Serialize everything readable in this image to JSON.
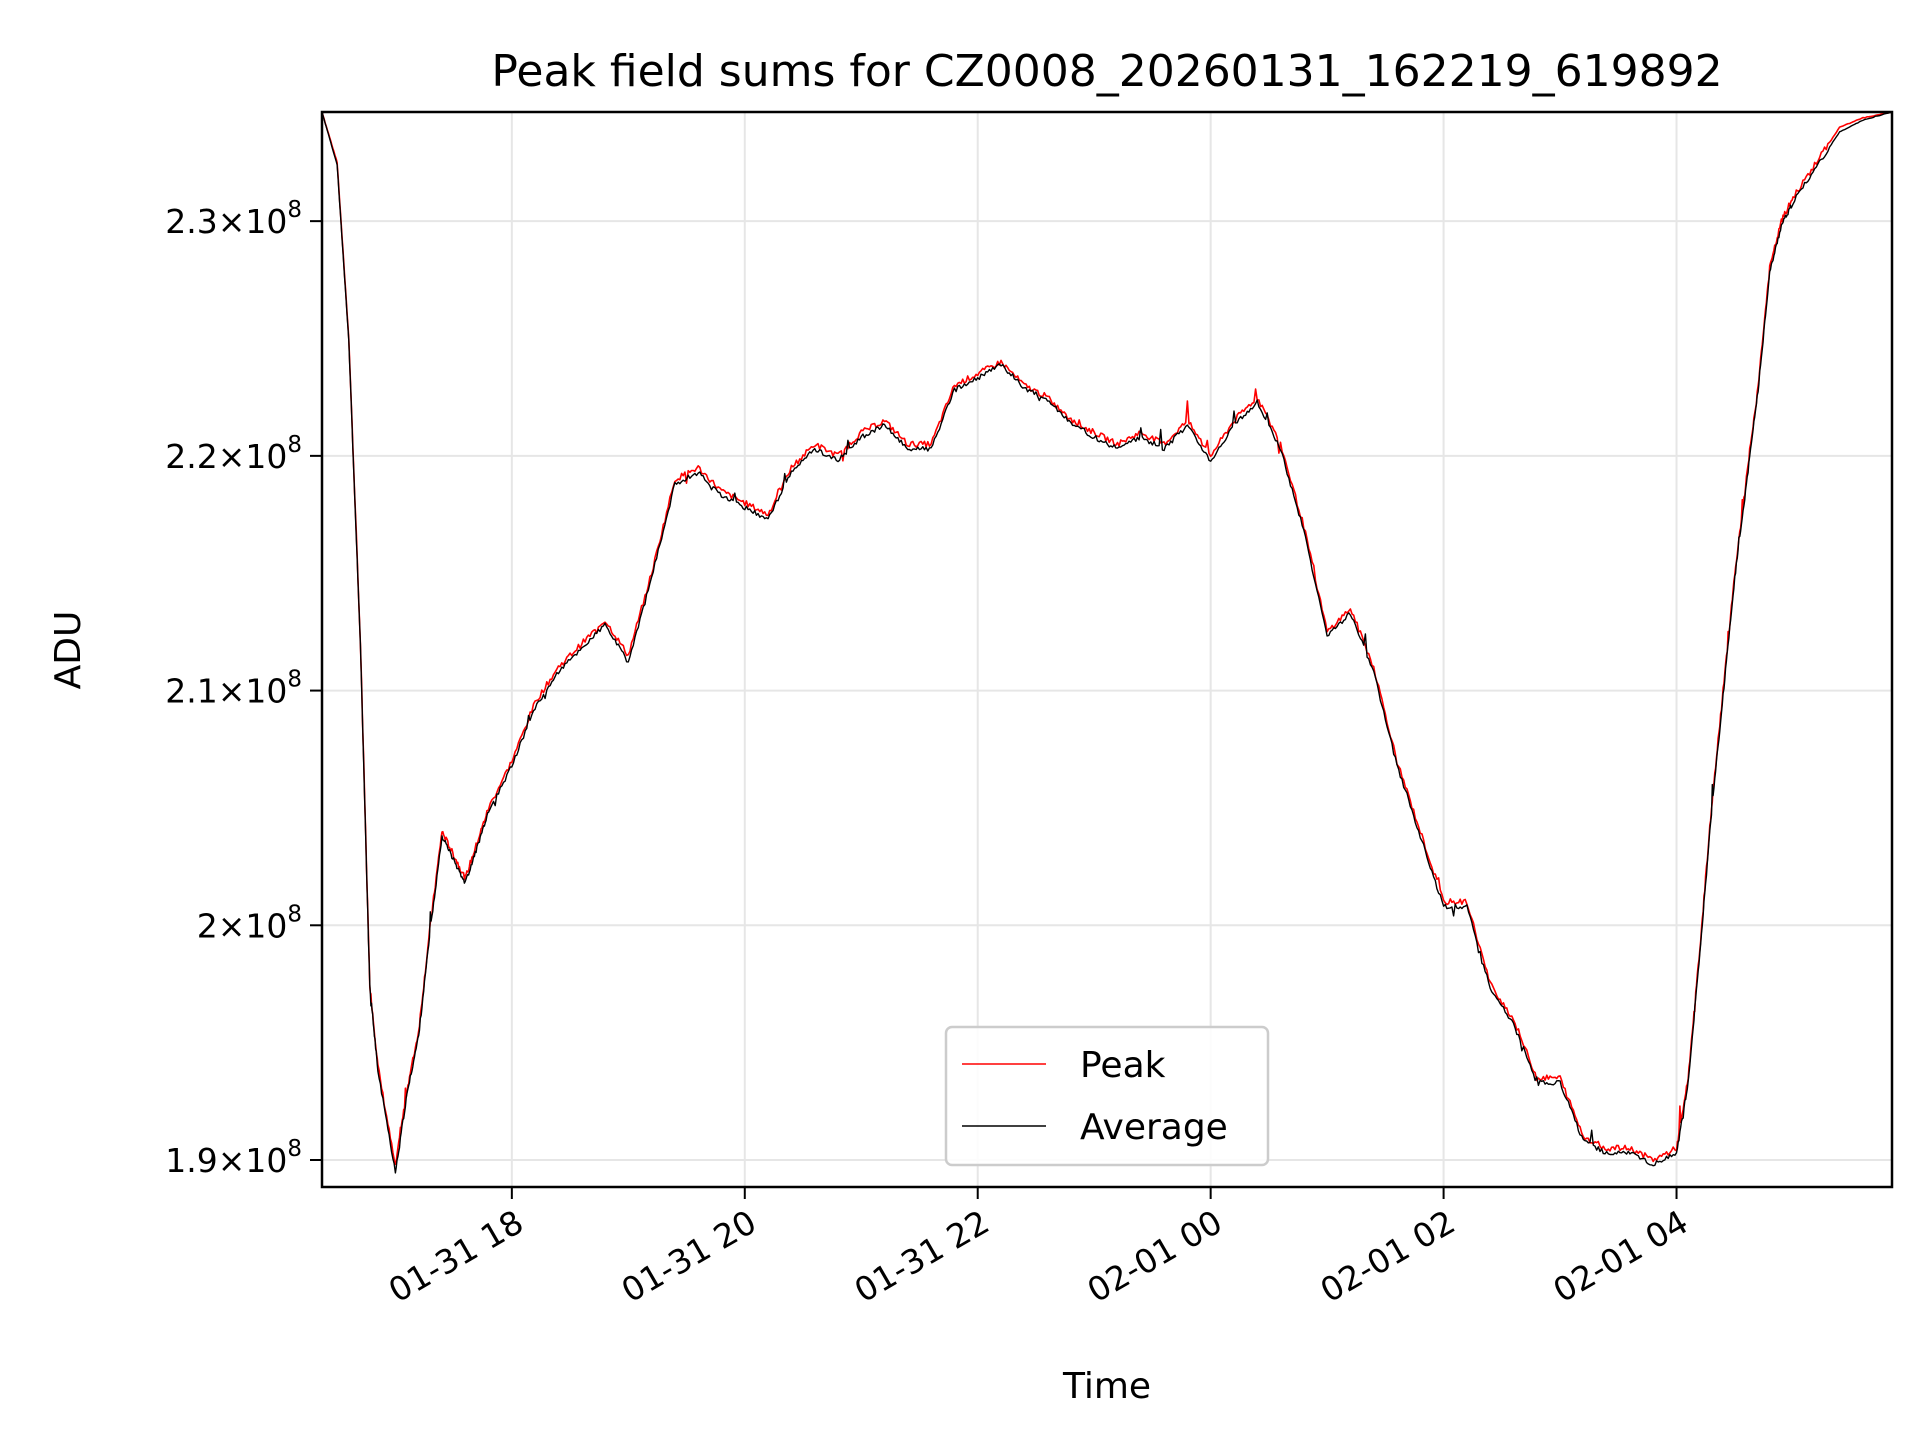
{
  "chart_data": {
    "type": "line",
    "title": "Peak field sums for CZ0008_20260131_162219_619892",
    "xlabel": "Time",
    "ylabel": "ADU",
    "xlim": [
      16.37,
      29.85
    ],
    "ylim": [
      188850000.0,
      234650000.0
    ],
    "grid": true,
    "legend_position": "lower-center",
    "x_ticks": [
      {
        "value": 18,
        "label": "01-31 18"
      },
      {
        "value": 20,
        "label": "01-31 20"
      },
      {
        "value": 22,
        "label": "01-31 22"
      },
      {
        "value": 24,
        "label": "02-01 00"
      },
      {
        "value": 26,
        "label": "02-01 02"
      },
      {
        "value": 28,
        "label": "02-01 04"
      }
    ],
    "y_ticks": [
      {
        "value": 190000000.0,
        "mantissa": "1.9",
        "exponent": "8"
      },
      {
        "value": 200000000.0,
        "mantissa": "2",
        "exponent": "8"
      },
      {
        "value": 210000000.0,
        "mantissa": "2.1",
        "exponent": "8"
      },
      {
        "value": 220000000.0,
        "mantissa": "2.2",
        "exponent": "8"
      },
      {
        "value": 230000000.0,
        "mantissa": "2.3",
        "exponent": "8"
      }
    ],
    "series": [
      {
        "name": "Peak",
        "color": "#ff0000"
      },
      {
        "name": "Average",
        "color": "#000000"
      }
    ],
    "x": [
      16.37,
      16.5,
      16.6,
      16.7,
      16.78,
      16.85,
      17.0,
      17.1,
      17.2,
      17.3,
      17.4,
      17.5,
      17.6,
      17.7,
      17.8,
      18.0,
      18.2,
      18.4,
      18.6,
      18.8,
      19.0,
      19.2,
      19.4,
      19.6,
      19.8,
      20.0,
      20.2,
      20.4,
      20.6,
      20.8,
      21.0,
      21.2,
      21.4,
      21.6,
      21.8,
      22.0,
      22.2,
      22.4,
      22.6,
      22.8,
      23.0,
      23.2,
      23.4,
      23.6,
      23.8,
      24.0,
      24.2,
      24.4,
      24.6,
      24.8,
      25.0,
      25.2,
      25.4,
      25.6,
      25.8,
      26.0,
      26.2,
      26.4,
      26.6,
      26.8,
      27.0,
      27.2,
      27.4,
      27.6,
      27.8,
      28.0,
      28.1,
      28.2,
      28.3,
      28.4,
      28.5,
      28.6,
      28.7,
      28.8,
      28.9,
      29.0,
      29.2,
      29.4,
      29.6,
      29.85
    ],
    "values": [
      234650000.0,
      232500000.0,
      225000000.0,
      212000000.0,
      197500000.0,
      194000000.0,
      189700000.0,
      193000000.0,
      195500000.0,
      200000000.0,
      204000000.0,
      203000000.0,
      202000000.0,
      203500000.0,
      205000000.0,
      207000000.0,
      209500000.0,
      211000000.0,
      212000000.0,
      213000000.0,
      211500000.0,
      215000000.0,
      219000000.0,
      219500000.0,
      218500000.0,
      218000000.0,
      217500000.0,
      219500000.0,
      220500000.0,
      220000000.0,
      221000000.0,
      221500000.0,
      220500000.0,
      220500000.0,
      223000000.0,
      223500000.0,
      224000000.0,
      223000000.0,
      222500000.0,
      221500000.0,
      221000000.0,
      220500000.0,
      221000000.0,
      220500000.0,
      221500000.0,
      220000000.0,
      221500000.0,
      222500000.0,
      220500000.0,
      217000000.0,
      212500000.0,
      213500000.0,
      211000000.0,
      207000000.0,
      204000000.0,
      201000000.0,
      201000000.0,
      197500000.0,
      196000000.0,
      193500000.0,
      193500000.0,
      191000000.0,
      190500000.0,
      190500000.0,
      190000000.0,
      190500000.0,
      193500000.0,
      199000000.0,
      205000000.0,
      210000000.0,
      215000000.0,
      219000000.0,
      223000000.0,
      228000000.0,
      230000000.0,
      231000000.0,
      232500000.0,
      234000000.0,
      234400000.0,
      234650000.0
    ],
    "average_values": [
      234650000.0,
      232400000.0,
      224900000.0,
      211900000.0,
      197400000.0,
      193800000.0,
      189500000.0,
      192800000.0,
      195300000.0,
      199800000.0,
      203800000.0,
      202800000.0,
      201800000.0,
      203300000.0,
      204800000.0,
      206800000.0,
      209300000.0,
      210800000.0,
      211800000.0,
      212800000.0,
      211200000.0,
      214800000.0,
      218800000.0,
      219300000.0,
      218300000.0,
      217800000.0,
      217300000.0,
      219300000.0,
      220300000.0,
      219800000.0,
      220800000.0,
      221300000.0,
      220300000.0,
      220300000.0,
      222800000.0,
      223300000.0,
      223900000.0,
      222900000.0,
      222400000.0,
      221400000.0,
      220800000.0,
      220300000.0,
      220800000.0,
      220300000.0,
      221300000.0,
      219800000.0,
      221300000.0,
      222300000.0,
      220300000.0,
      216800000.0,
      212300000.0,
      213300000.0,
      210800000.0,
      206800000.0,
      203800000.0,
      200800000.0,
      200800000.0,
      197300000.0,
      195800000.0,
      193300000.0,
      193300000.0,
      190800000.0,
      190300000.0,
      190300000.0,
      189800000.0,
      190300000.0,
      193300000.0,
      198800000.0,
      204800000.0,
      209800000.0,
      214800000.0,
      218800000.0,
      222800000.0,
      227800000.0,
      229800000.0,
      230800000.0,
      232300000.0,
      233800000.0,
      234300000.0,
      234650000.0
    ]
  }
}
